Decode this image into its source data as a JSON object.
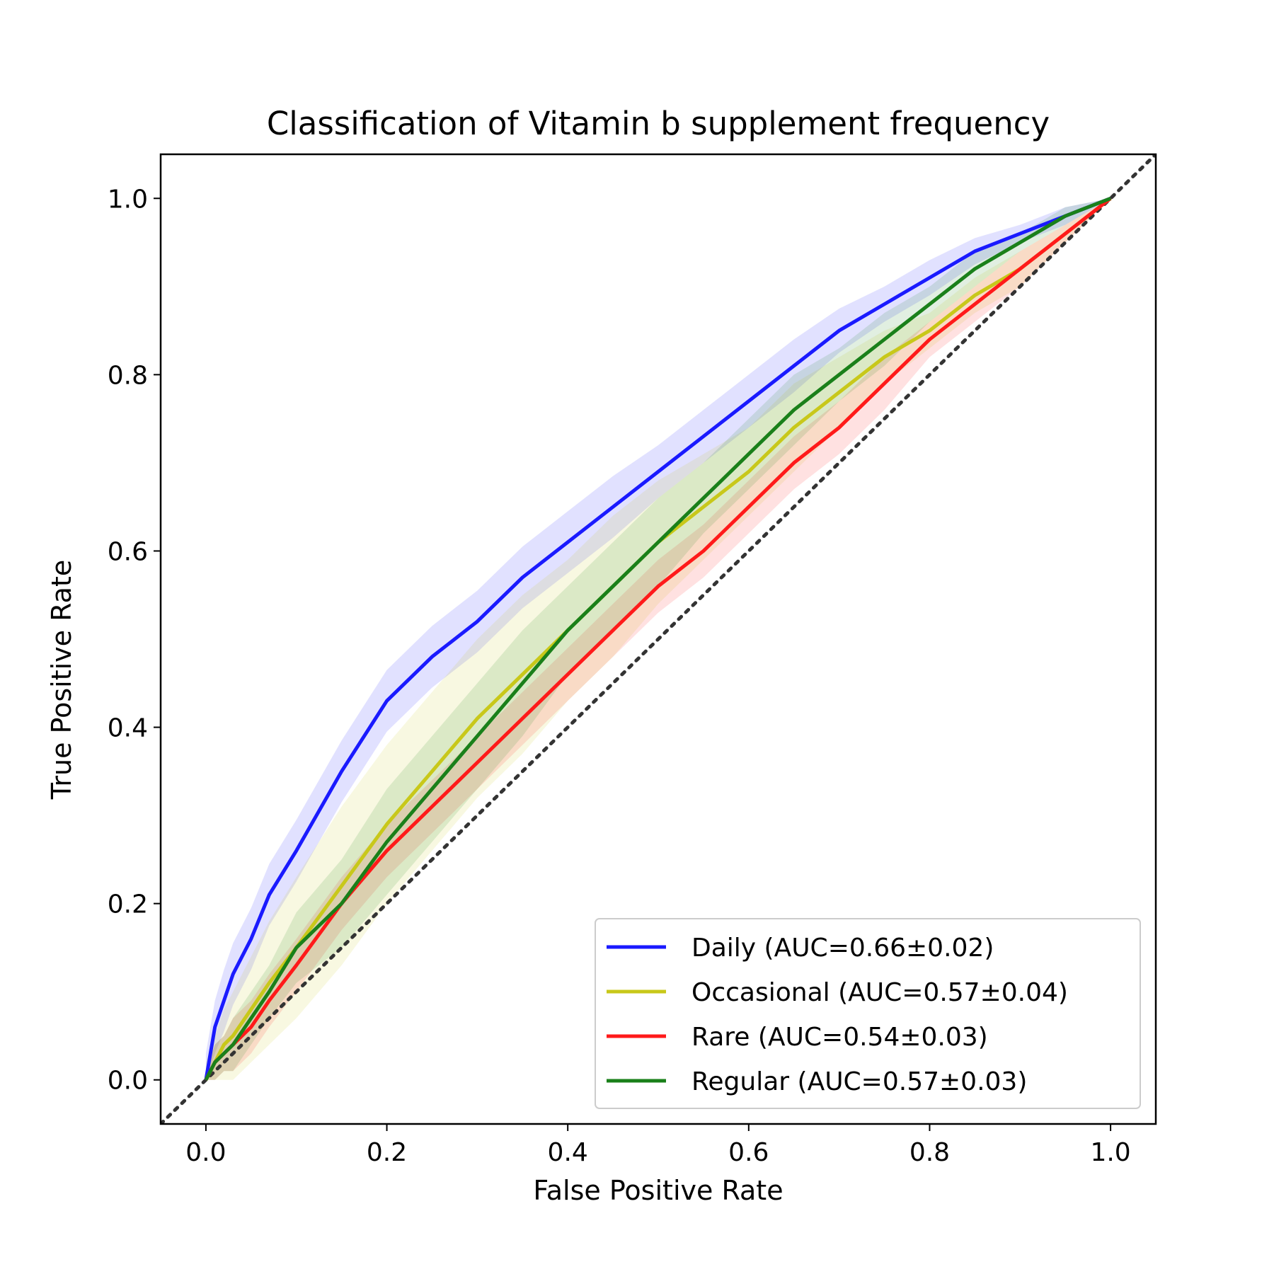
{
  "chart_data": {
    "type": "line",
    "title": "Classification of Vitamin b supplement frequency",
    "xlabel": "False Positive Rate",
    "ylabel": "True Positive Rate",
    "xlim": [
      -0.05,
      1.05
    ],
    "ylim": [
      -0.05,
      1.05
    ],
    "xticks": [
      "0.0",
      "0.2",
      "0.4",
      "0.6",
      "0.8",
      "1.0"
    ],
    "yticks": [
      "0.0",
      "0.2",
      "0.4",
      "0.6",
      "0.8",
      "1.0"
    ],
    "grid": false,
    "legend_position": "lower-right",
    "reference_line": {
      "style": "dotted",
      "color": "#333333",
      "x": [
        -0.05,
        1.05
      ],
      "y": [
        -0.05,
        1.05
      ]
    },
    "x": [
      0,
      0.01,
      0.02,
      0.03,
      0.05,
      0.07,
      0.1,
      0.15,
      0.2,
      0.25,
      0.3,
      0.35,
      0.4,
      0.45,
      0.5,
      0.55,
      0.6,
      0.65,
      0.7,
      0.75,
      0.8,
      0.85,
      0.9,
      0.95,
      1.0
    ],
    "series": [
      {
        "name": "Daily (AUC=0.66±0.02)",
        "color": "#1a1aff",
        "values": [
          0,
          0.06,
          0.09,
          0.12,
          0.16,
          0.21,
          0.26,
          0.35,
          0.43,
          0.48,
          0.52,
          0.57,
          0.61,
          0.65,
          0.69,
          0.73,
          0.77,
          0.81,
          0.85,
          0.88,
          0.91,
          0.94,
          0.96,
          0.98,
          1.0
        ],
        "band": [
          0.03,
          0.03,
          0.035,
          0.035,
          0.035,
          0.035,
          0.035,
          0.035,
          0.035,
          0.035,
          0.035,
          0.035,
          0.035,
          0.035,
          0.03,
          0.03,
          0.03,
          0.03,
          0.025,
          0.02,
          0.02,
          0.015,
          0.01,
          0.01,
          0
        ]
      },
      {
        "name": "Occasional (AUC=0.57±0.04)",
        "color": "#c8c81a",
        "values": [
          0,
          0.02,
          0.04,
          0.05,
          0.08,
          0.11,
          0.15,
          0.22,
          0.29,
          0.35,
          0.41,
          0.46,
          0.51,
          0.56,
          0.61,
          0.65,
          0.69,
          0.74,
          0.78,
          0.82,
          0.85,
          0.89,
          0.92,
          0.96,
          1.0
        ],
        "band": [
          0.02,
          0.03,
          0.04,
          0.05,
          0.06,
          0.07,
          0.08,
          0.09,
          0.09,
          0.09,
          0.09,
          0.09,
          0.08,
          0.08,
          0.07,
          0.06,
          0.05,
          0.05,
          0.04,
          0.03,
          0.02,
          0.02,
          0.02,
          0.01,
          0
        ]
      },
      {
        "name": "Rare (AUC=0.54±0.03)",
        "color": "#ff1a1a",
        "values": [
          0,
          0.02,
          0.03,
          0.04,
          0.06,
          0.09,
          0.13,
          0.2,
          0.26,
          0.31,
          0.36,
          0.41,
          0.46,
          0.51,
          0.56,
          0.6,
          0.65,
          0.7,
          0.74,
          0.79,
          0.84,
          0.88,
          0.92,
          0.96,
          1.0
        ],
        "band": [
          0.01,
          0.02,
          0.02,
          0.03,
          0.03,
          0.03,
          0.03,
          0.03,
          0.03,
          0.03,
          0.03,
          0.03,
          0.03,
          0.03,
          0.03,
          0.03,
          0.03,
          0.03,
          0.03,
          0.03,
          0.02,
          0.02,
          0.02,
          0.01,
          0
        ]
      },
      {
        "name": "Regular (AUC=0.57±0.03)",
        "color": "#1a801a",
        "values": [
          0,
          0.02,
          0.03,
          0.04,
          0.07,
          0.1,
          0.15,
          0.2,
          0.27,
          0.33,
          0.39,
          0.45,
          0.51,
          0.56,
          0.61,
          0.66,
          0.71,
          0.76,
          0.8,
          0.84,
          0.88,
          0.92,
          0.95,
          0.98,
          1.0
        ],
        "band": [
          0.01,
          0.02,
          0.02,
          0.03,
          0.03,
          0.03,
          0.04,
          0.05,
          0.06,
          0.06,
          0.06,
          0.06,
          0.05,
          0.05,
          0.05,
          0.04,
          0.04,
          0.04,
          0.03,
          0.03,
          0.02,
          0.02,
          0.01,
          0.01,
          0
        ]
      }
    ]
  }
}
